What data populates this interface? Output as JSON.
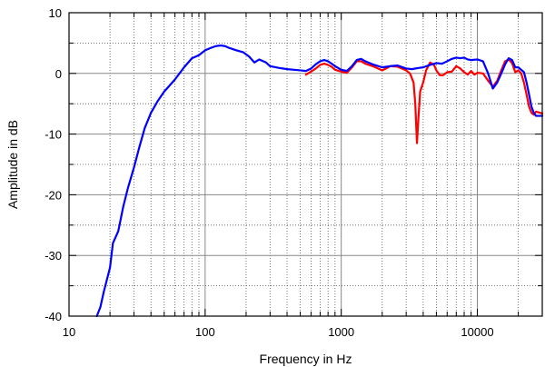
{
  "chart_data": {
    "type": "line",
    "xlabel": "Frequency in Hz",
    "ylabel": "Amplitude in dB",
    "x_scale": "log",
    "xlim": [
      10,
      30000
    ],
    "ylim": [
      -40,
      10
    ],
    "x_ticks": [
      10,
      100,
      1000,
      10000
    ],
    "x_tick_labels": [
      "10",
      "100",
      "1000",
      "10000"
    ],
    "y_ticks": [
      10,
      0,
      -10,
      -20,
      -30,
      -40
    ],
    "y_tick_labels": [
      "10",
      "0",
      "-10",
      "-20",
      "-30",
      "-40"
    ],
    "grid": true,
    "series": [
      {
        "color": "#0000ff",
        "points": [
          [
            16,
            -40
          ],
          [
            17,
            -38.5
          ],
          [
            18,
            -36
          ],
          [
            20,
            -32
          ],
          [
            21,
            -28
          ],
          [
            23,
            -26
          ],
          [
            25,
            -22
          ],
          [
            27,
            -19
          ],
          [
            30,
            -15.5
          ],
          [
            33,
            -12
          ],
          [
            36,
            -9
          ],
          [
            40,
            -6.5
          ],
          [
            45,
            -4.5
          ],
          [
            50,
            -3
          ],
          [
            60,
            -1
          ],
          [
            70,
            1
          ],
          [
            80,
            2.5
          ],
          [
            90,
            3
          ],
          [
            100,
            3.8
          ],
          [
            110,
            4.2
          ],
          [
            120,
            4.5
          ],
          [
            130,
            4.6
          ],
          [
            140,
            4.5
          ],
          [
            150,
            4.2
          ],
          [
            170,
            3.8
          ],
          [
            190,
            3.5
          ],
          [
            210,
            2.8
          ],
          [
            230,
            1.8
          ],
          [
            250,
            2.3
          ],
          [
            280,
            1.8
          ],
          [
            300,
            1.2
          ],
          [
            350,
            0.9
          ],
          [
            400,
            0.7
          ],
          [
            450,
            0.6
          ],
          [
            500,
            0.5
          ],
          [
            550,
            0.4
          ],
          [
            600,
            0.8
          ],
          [
            650,
            1.5
          ],
          [
            700,
            2
          ],
          [
            750,
            2.2
          ],
          [
            800,
            2
          ],
          [
            850,
            1.6
          ],
          [
            900,
            1.2
          ],
          [
            1000,
            0.6
          ],
          [
            1100,
            0.4
          ],
          [
            1200,
            1.2
          ],
          [
            1300,
            2.2
          ],
          [
            1400,
            2.4
          ],
          [
            1500,
            2
          ],
          [
            1700,
            1.5
          ],
          [
            2000,
            1
          ],
          [
            2300,
            1.2
          ],
          [
            2600,
            1.3
          ],
          [
            3000,
            0.8
          ],
          [
            3300,
            0.7
          ],
          [
            3700,
            0.9
          ],
          [
            4000,
            1
          ],
          [
            4500,
            1.4
          ],
          [
            5000,
            1.7
          ],
          [
            5500,
            1.6
          ],
          [
            6000,
            2
          ],
          [
            6500,
            2.4
          ],
          [
            7000,
            2.6
          ],
          [
            7500,
            2.5
          ],
          [
            8000,
            2.6
          ],
          [
            8500,
            2.3
          ],
          [
            9000,
            2.2
          ],
          [
            10000,
            2.3
          ],
          [
            11000,
            2
          ],
          [
            12000,
            0
          ],
          [
            13000,
            -2.5
          ],
          [
            14000,
            -1.5
          ],
          [
            15000,
            0
          ],
          [
            16000,
            1.5
          ],
          [
            17000,
            2.5
          ],
          [
            18000,
            2.2
          ],
          [
            19000,
            1
          ],
          [
            20000,
            1
          ],
          [
            21000,
            0.6
          ],
          [
            22000,
            0.2
          ],
          [
            23000,
            -1.5
          ],
          [
            24000,
            -3.5
          ],
          [
            25000,
            -5.5
          ],
          [
            26000,
            -6.5
          ],
          [
            27000,
            -7
          ],
          [
            28000,
            -7
          ],
          [
            29000,
            -7
          ],
          [
            30000,
            -7
          ]
        ]
      },
      {
        "color": "#ff0000",
        "points": [
          [
            550,
            -0.2
          ],
          [
            600,
            0.3
          ],
          [
            650,
            0.8
          ],
          [
            700,
            1.4
          ],
          [
            750,
            1.6
          ],
          [
            800,
            1.4
          ],
          [
            850,
            1.1
          ],
          [
            900,
            0.6
          ],
          [
            1000,
            0.3
          ],
          [
            1100,
            0.1
          ],
          [
            1200,
            1
          ],
          [
            1300,
            2
          ],
          [
            1400,
            2
          ],
          [
            1500,
            1.6
          ],
          [
            1700,
            1.2
          ],
          [
            2000,
            0.5
          ],
          [
            2300,
            1.2
          ],
          [
            2600,
            1.1
          ],
          [
            3000,
            0.5
          ],
          [
            3200,
            0
          ],
          [
            3400,
            -1.5
          ],
          [
            3500,
            -5
          ],
          [
            3600,
            -11.5
          ],
          [
            3700,
            -7
          ],
          [
            3800,
            -3
          ],
          [
            4000,
            -1.5
          ],
          [
            4200,
            0.5
          ],
          [
            4500,
            1.8
          ],
          [
            4800,
            1.4
          ],
          [
            5000,
            0.5
          ],
          [
            5300,
            -0.3
          ],
          [
            5600,
            -0.3
          ],
          [
            6000,
            0.2
          ],
          [
            6500,
            0.3
          ],
          [
            7000,
            1.2
          ],
          [
            7500,
            0.8
          ],
          [
            8000,
            0.2
          ],
          [
            8500,
            -0.2
          ],
          [
            9000,
            0.4
          ],
          [
            9500,
            -0.2
          ],
          [
            10000,
            0.1
          ],
          [
            11000,
            0
          ],
          [
            12000,
            -1.2
          ],
          [
            13000,
            -2.2
          ],
          [
            14000,
            -1.2
          ],
          [
            15000,
            0.5
          ],
          [
            16000,
            2
          ],
          [
            17000,
            2.3
          ],
          [
            18000,
            1.7
          ],
          [
            19000,
            0.2
          ],
          [
            20000,
            0.5
          ],
          [
            21000,
            0
          ],
          [
            22000,
            -1.5
          ],
          [
            23000,
            -3.5
          ],
          [
            24000,
            -5.5
          ],
          [
            25000,
            -6.5
          ],
          [
            26000,
            -6.8
          ],
          [
            27000,
            -6.3
          ],
          [
            28000,
            -6.4
          ],
          [
            30000,
            -6.6
          ]
        ]
      }
    ]
  }
}
